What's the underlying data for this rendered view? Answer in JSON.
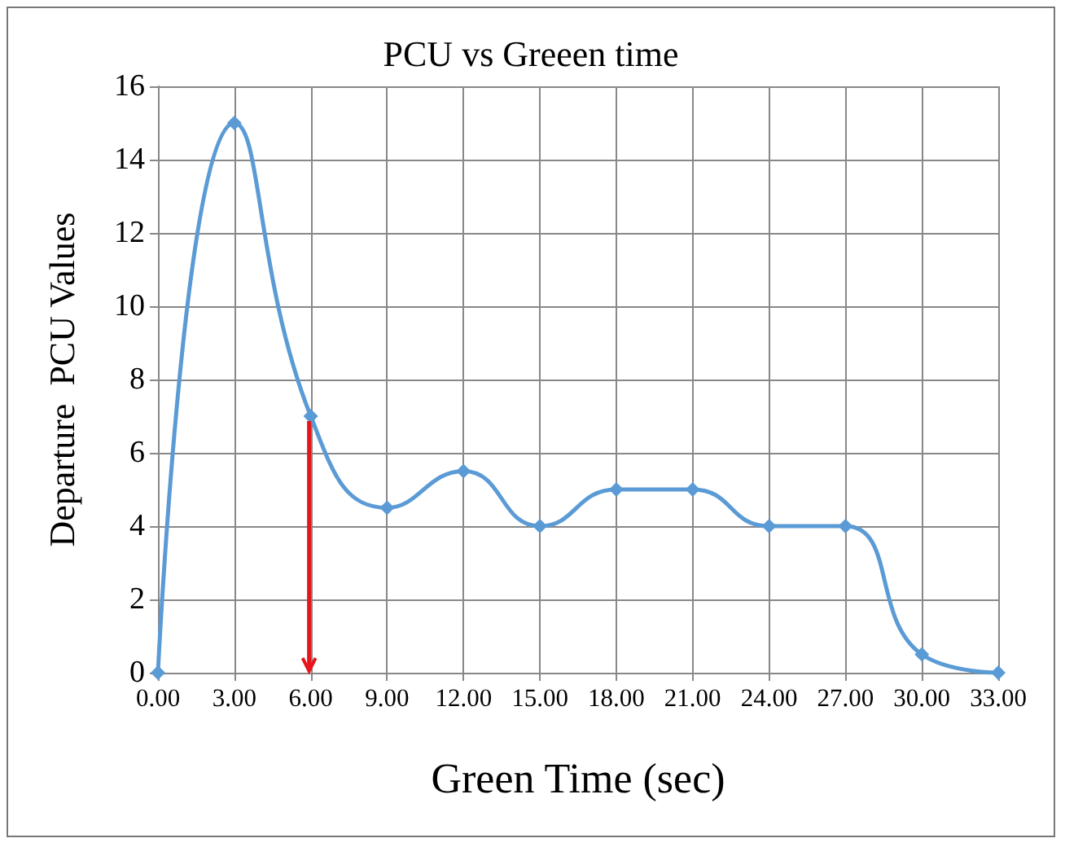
{
  "chart_data": {
    "type": "line",
    "title": "PCU vs Greeen time",
    "xlabel": "Green Time (sec)",
    "ylabel": "Departure  PCU Values",
    "x": [
      0,
      3,
      6,
      9,
      12,
      15,
      18,
      21,
      24,
      27,
      30,
      33
    ],
    "series": [
      {
        "color": "#5b9bd5",
        "values": [
          0,
          15,
          7,
          4.5,
          5.5,
          4,
          5,
          5,
          4,
          4,
          0.5,
          0
        ]
      }
    ],
    "xlim": [
      0,
      33
    ],
    "xticks": [
      {
        "value": 0,
        "label": "0.00"
      },
      {
        "value": 3,
        "label": "3.00"
      },
      {
        "value": 6,
        "label": "6.00"
      },
      {
        "value": 9,
        "label": "9.00"
      },
      {
        "value": 12,
        "label": "12.00"
      },
      {
        "value": 15,
        "label": "15.00"
      },
      {
        "value": 18,
        "label": "18.00"
      },
      {
        "value": 21,
        "label": "21.00"
      },
      {
        "value": 24,
        "label": "24.00"
      },
      {
        "value": 27,
        "label": "27.00"
      },
      {
        "value": 30,
        "label": "30.00"
      },
      {
        "value": 33,
        "label": "33.00"
      }
    ],
    "ylim": [
      0,
      16
    ],
    "yticks": [
      0,
      2,
      4,
      6,
      8,
      10,
      12,
      14,
      16
    ],
    "grid": true,
    "marker": "diamond",
    "line_style": "solid",
    "ref_lines": [
      {
        "axis": "x",
        "value": 6,
        "color": "#e8141c"
      }
    ]
  }
}
